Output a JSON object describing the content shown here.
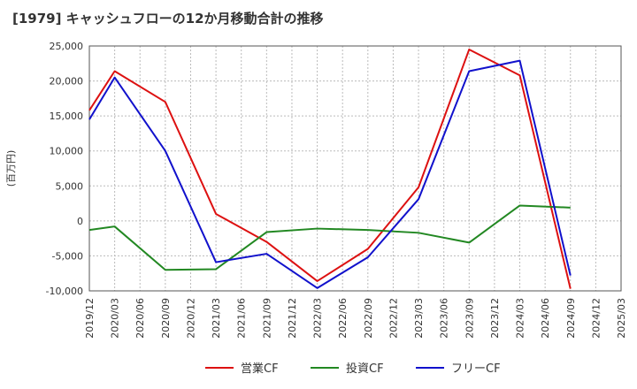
{
  "chart_data": {
    "type": "line",
    "title": "[1979]  キャッシュフローの12か月移動合計の推移",
    "ylabel": "(百万円)",
    "xlabel": "",
    "ylim": [
      -10000,
      25000
    ],
    "yticks": [
      -10000,
      -5000,
      0,
      5000,
      10000,
      15000,
      20000,
      25000
    ],
    "ytick_labels": [
      "-10,000",
      "-5,000",
      "0",
      "5,000",
      "10,000",
      "15,000",
      "20,000",
      "25,000"
    ],
    "categories": [
      "2019/12",
      "2020/03",
      "2020/06",
      "2020/09",
      "2020/12",
      "2021/03",
      "2021/06",
      "2021/09",
      "2021/12",
      "2022/03",
      "2022/06",
      "2022/09",
      "2022/12",
      "2023/03",
      "2023/06",
      "2023/09",
      "2023/12",
      "2024/03",
      "2024/06",
      "2024/09",
      "2024/12",
      "2025/03"
    ],
    "grid": true,
    "legend_position": "bottom",
    "series": [
      {
        "name": "営業CF",
        "color": "#dd1111",
        "x": [
          "2019/12",
          "2020/03",
          "2020/09",
          "2021/03",
          "2021/09",
          "2022/03",
          "2022/09",
          "2023/03",
          "2023/09",
          "2024/03",
          "2024/09"
        ],
        "values": [
          15800,
          21400,
          17000,
          1000,
          -3000,
          -8600,
          -4000,
          4800,
          24500,
          20800,
          -9700
        ]
      },
      {
        "name": "投資CF",
        "color": "#228822",
        "x": [
          "2019/12",
          "2020/03",
          "2020/09",
          "2021/03",
          "2021/09",
          "2022/03",
          "2022/09",
          "2023/03",
          "2023/09",
          "2024/03",
          "2024/09"
        ],
        "values": [
          -1300,
          -800,
          -7000,
          -6900,
          -1600,
          -1100,
          -1300,
          -1700,
          -3100,
          2200,
          1900
        ]
      },
      {
        "name": "フリーCF",
        "color": "#1111cc",
        "x": [
          "2019/12",
          "2020/03",
          "2020/09",
          "2021/03",
          "2021/09",
          "2022/03",
          "2022/09",
          "2023/03",
          "2023/09",
          "2024/03",
          "2024/09"
        ],
        "values": [
          14500,
          20500,
          10000,
          -5900,
          -4700,
          -9600,
          -5200,
          3100,
          21400,
          22900,
          -7800
        ]
      }
    ]
  }
}
